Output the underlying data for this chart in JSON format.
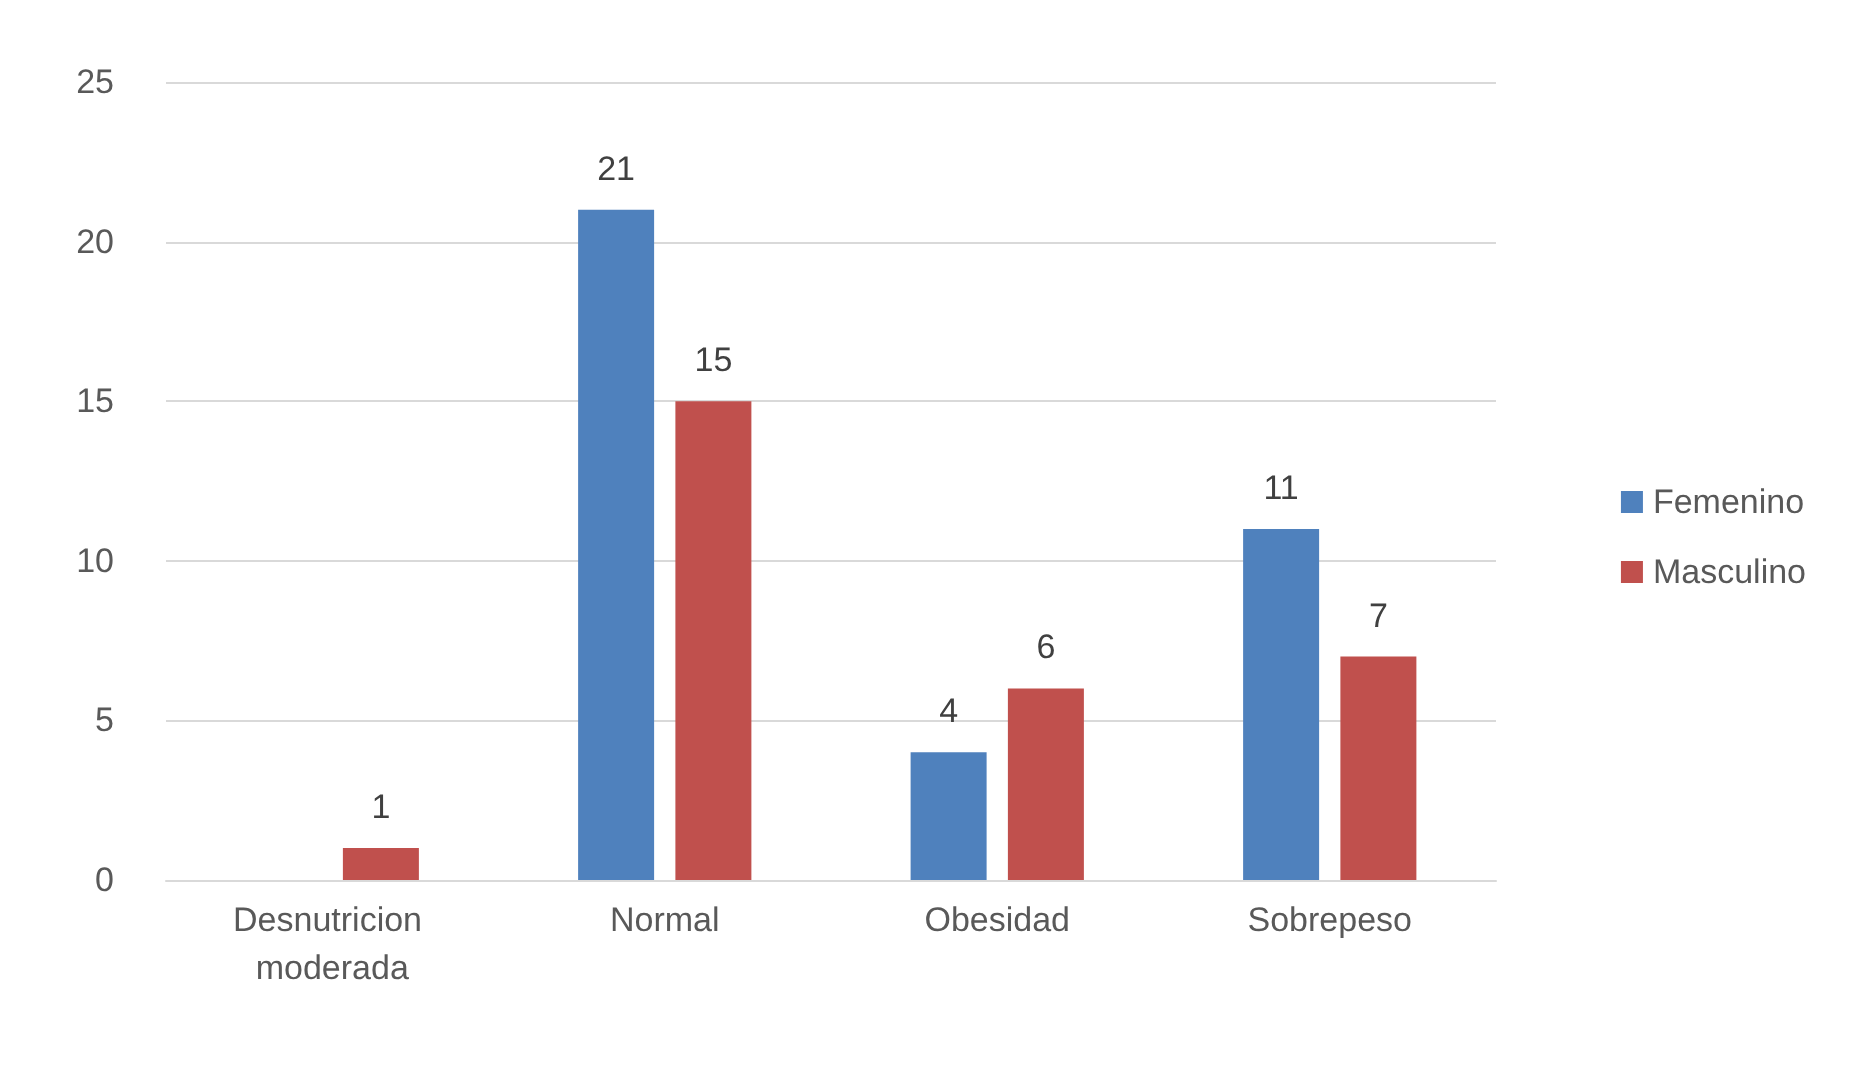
{
  "chart_data": {
    "type": "bar",
    "categories": [
      "Desnutricion moderada",
      "Normal",
      "Obesidad",
      "Sobrepeso"
    ],
    "series": [
      {
        "name": "Femenino",
        "color": "#4f81bd",
        "values": [
          null,
          21,
          4,
          11
        ]
      },
      {
        "name": "Masculino",
        "color": "#c0504d",
        "values": [
          1,
          15,
          6,
          7
        ]
      }
    ],
    "ylim": [
      0,
      25
    ],
    "yticks": [
      0,
      5,
      10,
      15,
      20,
      25
    ],
    "grid": "y",
    "legend": "right",
    "data_labels": true
  }
}
